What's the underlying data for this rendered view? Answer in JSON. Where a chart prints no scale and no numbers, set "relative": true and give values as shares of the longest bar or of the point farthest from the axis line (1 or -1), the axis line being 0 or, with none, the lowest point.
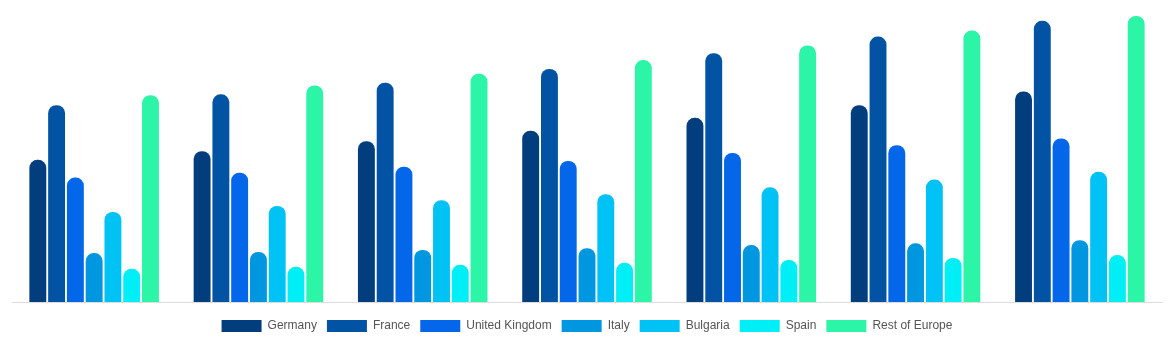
{
  "chart_data": {
    "type": "bar",
    "relative": true,
    "legend": "bottom",
    "categories": [
      null,
      null,
      null,
      null,
      null,
      null,
      null
    ],
    "series": [
      {
        "name": "Germany",
        "color": "#023e7d",
        "values": [
          0.497,
          0.527,
          0.562,
          0.599,
          0.644,
          0.688,
          0.736
        ]
      },
      {
        "name": "France",
        "color": "#0353a4",
        "values": [
          0.688,
          0.726,
          0.767,
          0.815,
          0.87,
          0.928,
          0.983
        ]
      },
      {
        "name": "United Kingdom",
        "color": "#0466e8",
        "values": [
          0.435,
          0.452,
          0.473,
          0.493,
          0.521,
          0.548,
          0.572
        ]
      },
      {
        "name": "Italy",
        "color": "#0096e0",
        "values": [
          0.171,
          0.175,
          0.182,
          0.188,
          0.199,
          0.205,
          0.216
        ]
      },
      {
        "name": "Bulgaria",
        "color": "#00c2f5",
        "values": [
          0.315,
          0.336,
          0.356,
          0.377,
          0.401,
          0.428,
          0.455
        ]
      },
      {
        "name": "Spain",
        "color": "#00eef5",
        "values": [
          0.116,
          0.123,
          0.13,
          0.137,
          0.147,
          0.154,
          0.164
        ]
      },
      {
        "name": "Rest of Europe",
        "color": "#2cf5a8",
        "values": [
          0.723,
          0.757,
          0.798,
          0.846,
          0.897,
          0.949,
          1
        ]
      }
    ]
  }
}
